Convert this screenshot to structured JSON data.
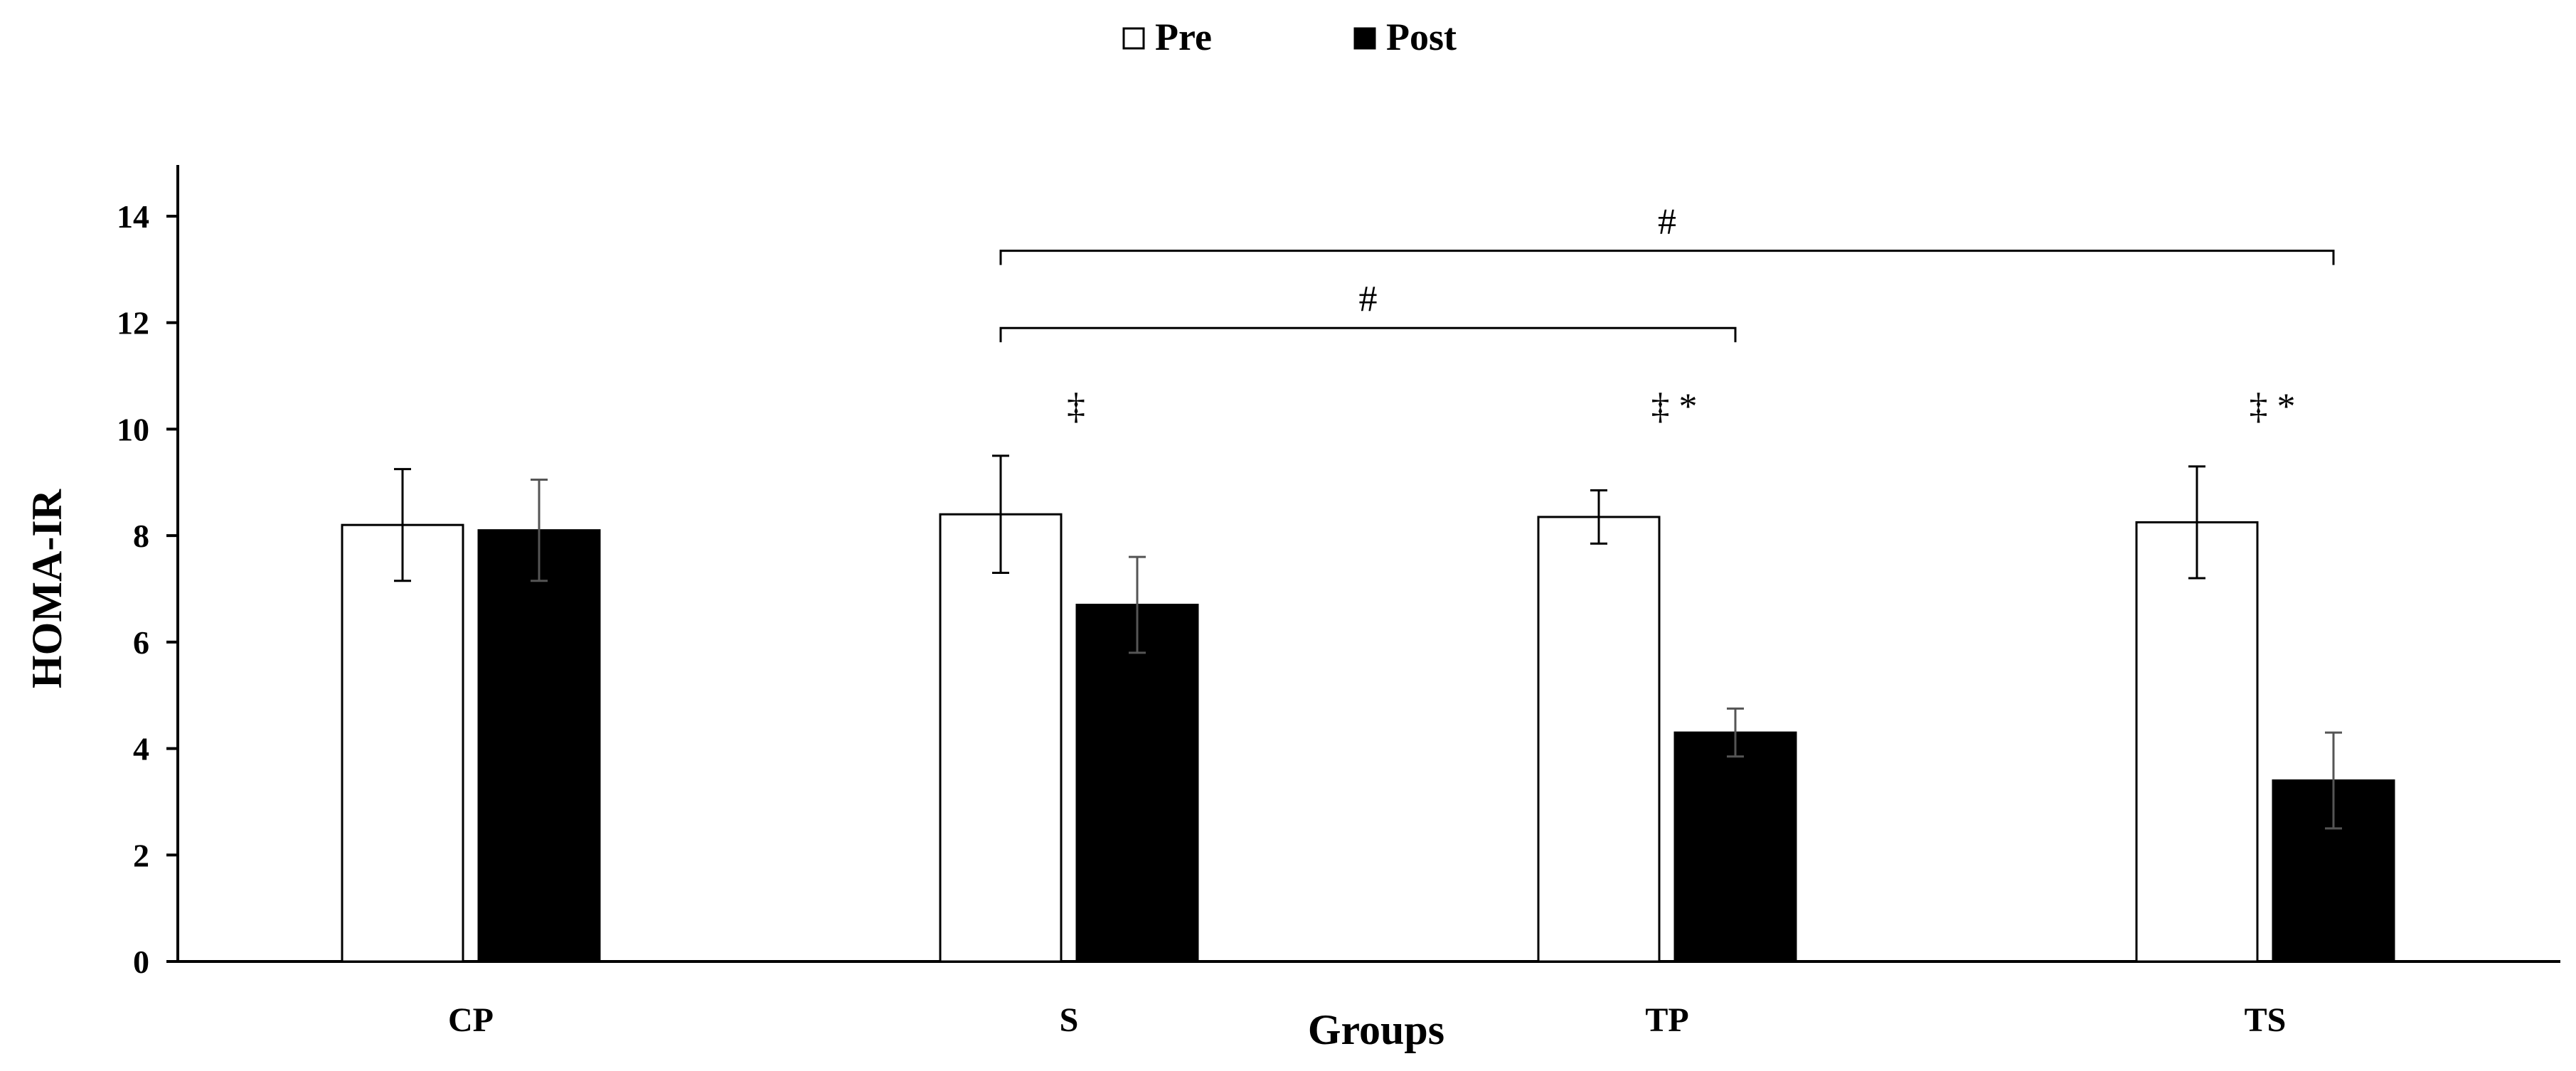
{
  "chart_data": {
    "type": "bar",
    "title": "",
    "xlabel": "Groups",
    "ylabel": "HOMA-IR",
    "ylim": [
      0,
      14
    ],
    "yticks": [
      0,
      2,
      4,
      6,
      8,
      10,
      12,
      14
    ],
    "grid": false,
    "legend_position": "top-center",
    "categories": [
      "CP",
      "S",
      "TP",
      "TS"
    ],
    "series": [
      {
        "name": "Pre",
        "fill": "#ffffff",
        "values": [
          8.2,
          8.4,
          8.35,
          8.25
        ],
        "errors": [
          1.05,
          1.1,
          0.5,
          1.05
        ]
      },
      {
        "name": "Post",
        "fill": "#000000",
        "values": [
          8.1,
          6.7,
          4.3,
          3.4
        ],
        "errors": [
          0.95,
          0.9,
          0.45,
          0.9
        ]
      }
    ],
    "annotations": [
      {
        "category": "S",
        "text": "‡"
      },
      {
        "category": "TP",
        "text": "‡ *"
      },
      {
        "category": "TS",
        "text": "‡ *"
      }
    ],
    "brackets": [
      {
        "from": "S",
        "to": "TP",
        "text": "#",
        "y": 11.9
      },
      {
        "from": "S",
        "to": "TS",
        "text": "#",
        "y": 13.35
      }
    ]
  }
}
